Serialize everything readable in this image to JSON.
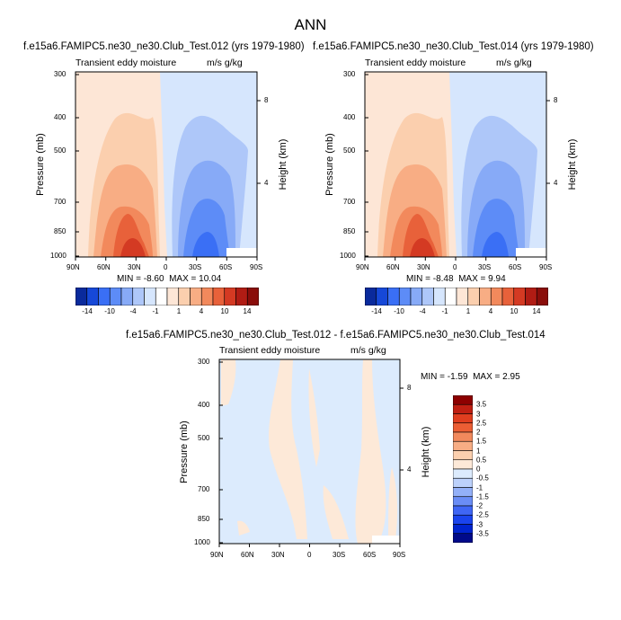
{
  "page": {
    "title": "ANN"
  },
  "colors": {
    "scale": [
      "#0a2a9c",
      "#1648d8",
      "#3a6ff5",
      "#5d8cf7",
      "#87aaf7",
      "#aec7f9",
      "#d6e6fd",
      "#ffffff",
      "#fde6d6",
      "#fbcfae",
      "#f8ad84",
      "#f2895c",
      "#e8613a",
      "#d43a23",
      "#b01c14",
      "#8a0d0a"
    ],
    "diff_scale": [
      "#000a8a",
      "#0024cf",
      "#1a44ee",
      "#3f66f5",
      "#6a8df6",
      "#93b0f8",
      "#bcd1fb",
      "#dcebfd",
      "#fde9d8",
      "#fbcfae",
      "#f8ad84",
      "#f2895c",
      "#ec5e34",
      "#e03e1f",
      "#c01f12",
      "#8d0000"
    ]
  },
  "chart_data": [
    {
      "type": "contour",
      "title": "f.e15a6.FAMIPC5.ne30_ne30.Club_Test.012 (yrs 1979-1980)",
      "left_label": "Transient eddy moisture",
      "units": "m/s g/kg",
      "ylabel": "Pressure (mb)",
      "y2label": "Height (km)",
      "x_ticks": [
        "90N",
        "60N",
        "30N",
        "0",
        "30S",
        "60S",
        "90S"
      ],
      "y_ticks": [
        "300",
        "400",
        "500",
        "700",
        "850",
        "1000"
      ],
      "y2_ticks": [
        "8",
        "4"
      ],
      "min_label": "MIN =",
      "min": "-8.60",
      "max_label": "MAX =",
      "max": "10.04",
      "colorbar_labels": [
        "-14",
        "-10",
        "-4",
        "-1",
        "1",
        "4",
        "10",
        "14"
      ]
    },
    {
      "type": "contour",
      "title": "f.e15a6.FAMIPC5.ne30_ne30.Club_Test.014 (yrs 1979-1980)",
      "left_label": "Transient eddy moisture",
      "units": "m/s g/kg",
      "ylabel": "Pressure (mb)",
      "y2label": "Height (km)",
      "x_ticks": [
        "90N",
        "60N",
        "30N",
        "0",
        "30S",
        "60S",
        "90S"
      ],
      "y_ticks": [
        "300",
        "400",
        "500",
        "700",
        "850",
        "1000"
      ],
      "y2_ticks": [
        "8",
        "4"
      ],
      "min_label": "MIN =",
      "min": "-8.48",
      "max_label": "MAX =",
      "max": "9.94",
      "colorbar_labels": [
        "-14",
        "-10",
        "-4",
        "-1",
        "1",
        "4",
        "10",
        "14"
      ]
    },
    {
      "type": "contour",
      "title": "f.e15a6.FAMIPC5.ne30_ne30.Club_Test.012 - f.e15a6.FAMIPC5.ne30_ne30.Club_Test.014",
      "left_label": "Transient eddy moisture",
      "units": "m/s g/kg",
      "ylabel": "Pressure (mb)",
      "y2label": "Height (km)",
      "x_ticks": [
        "90N",
        "60N",
        "30N",
        "0",
        "30S",
        "60S",
        "90S"
      ],
      "y_ticks": [
        "300",
        "400",
        "500",
        "700",
        "850",
        "1000"
      ],
      "y2_ticks": [
        "8",
        "4"
      ],
      "min_label": "MIN =",
      "min": "-1.59",
      "max_label": "MAX =",
      "max": "2.95",
      "colorbar_labels": [
        "3.5",
        "3",
        "2.5",
        "2",
        "1.5",
        "1",
        "0.5",
        "0",
        "-0.5",
        "-1",
        "-1.5",
        "-2",
        "-2.5",
        "-3",
        "-3.5"
      ]
    }
  ]
}
